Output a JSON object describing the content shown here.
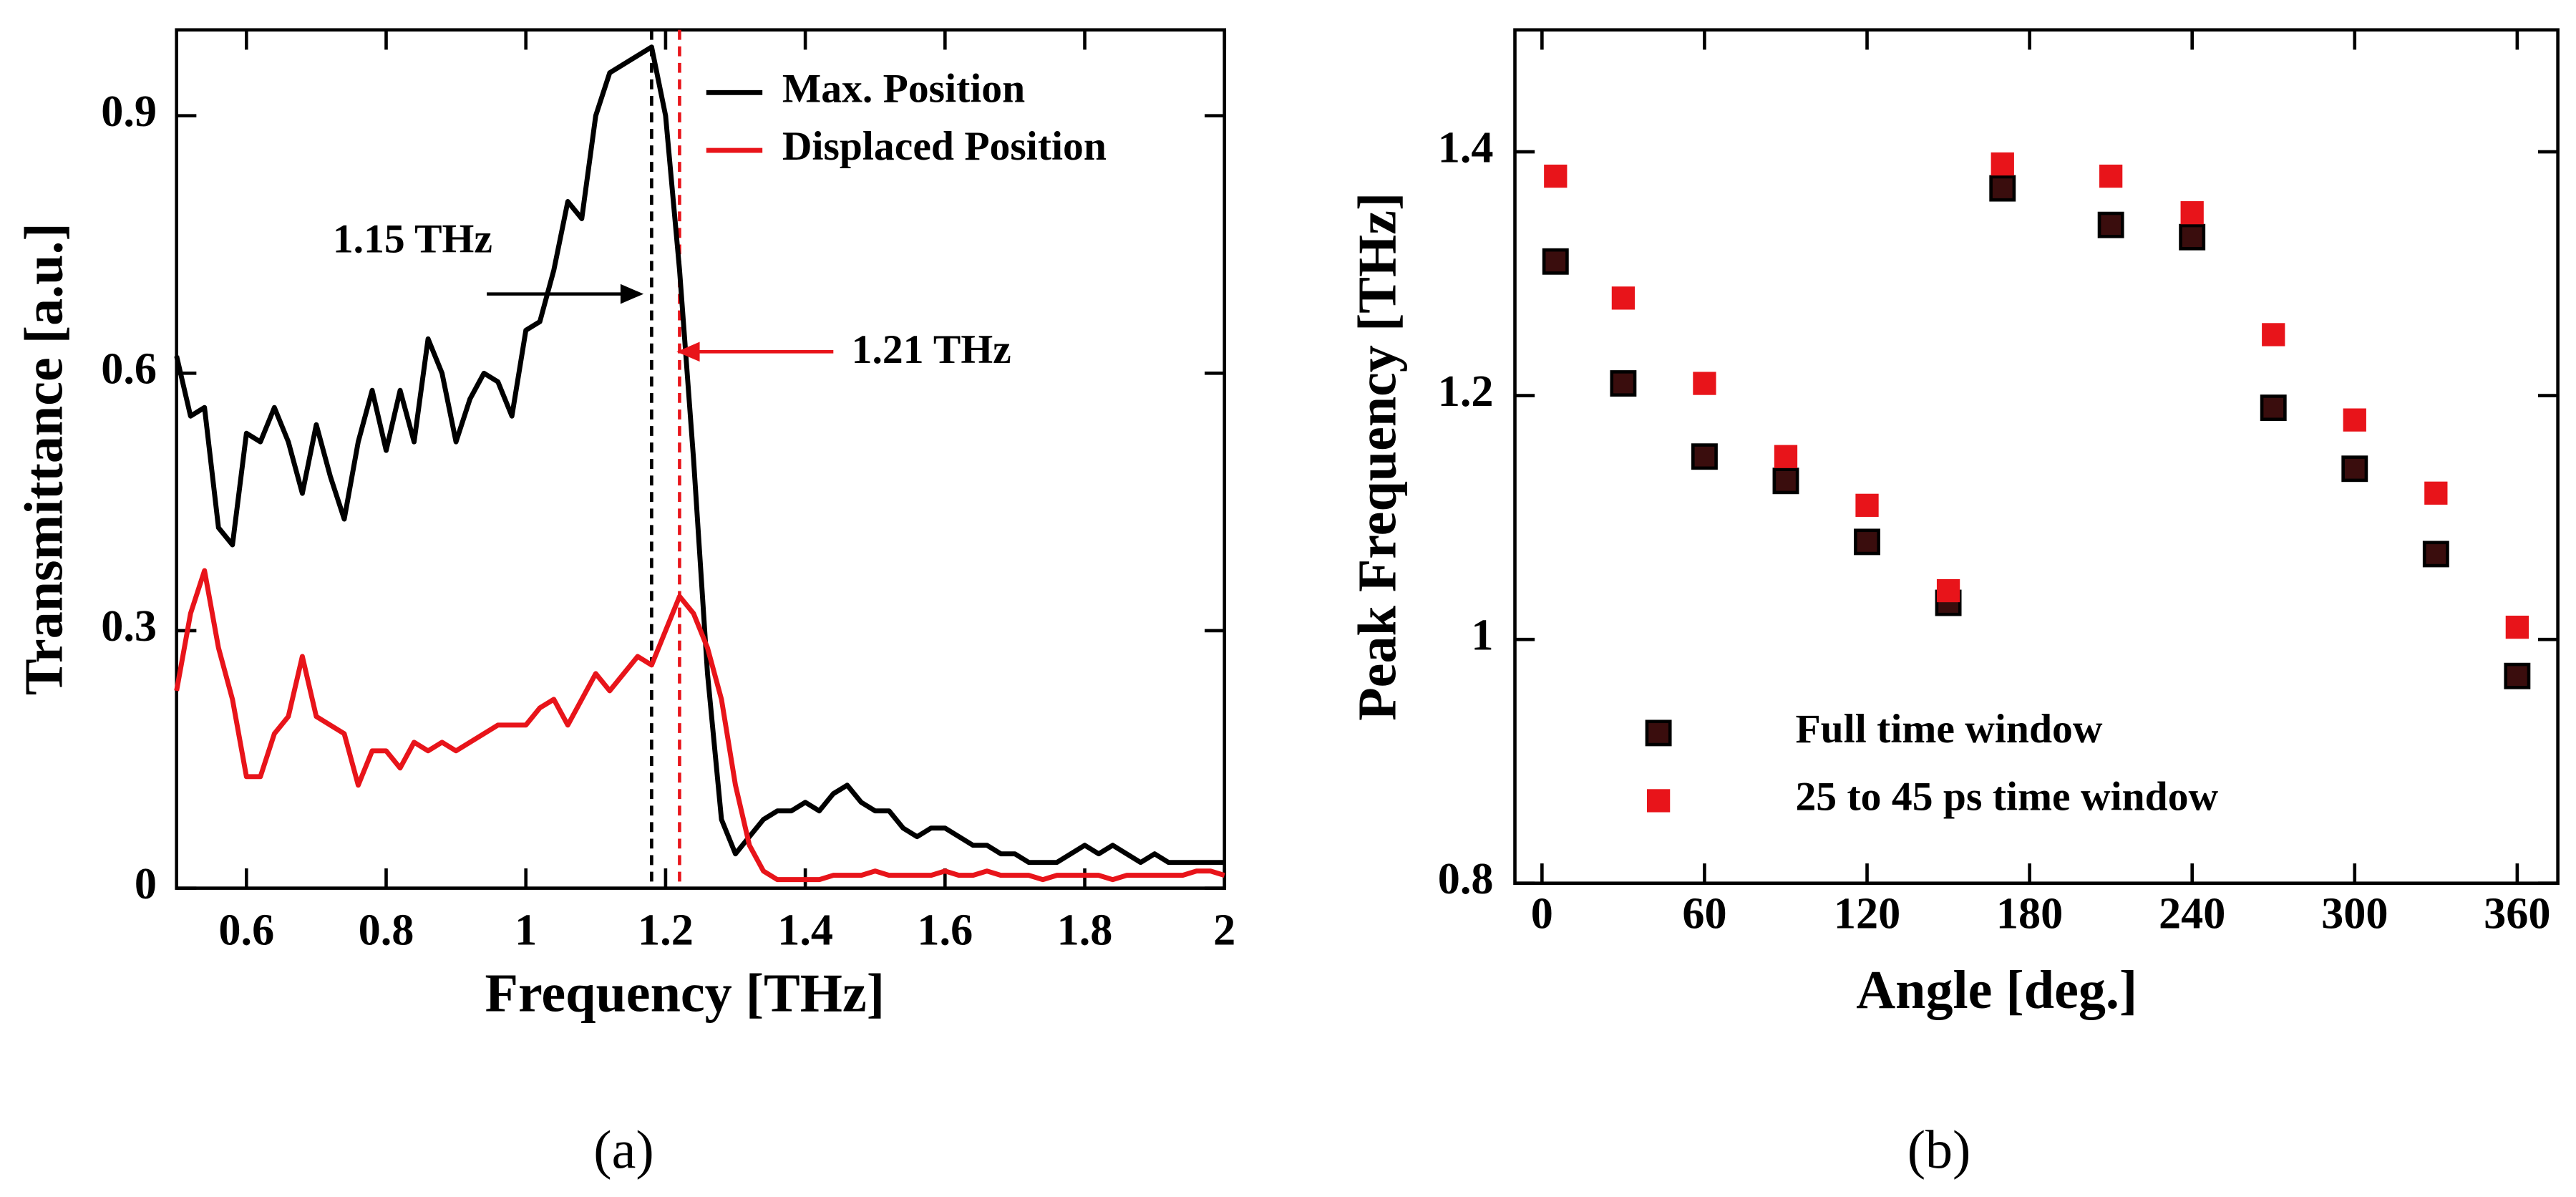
{
  "chart_data": [
    {
      "type": "line",
      "xlabel": "Frequency [THz]",
      "ylabel": "Transmittance [a.u.]",
      "caption": "(a)",
      "x": [
        0.5,
        0.52,
        0.54,
        0.56,
        0.58,
        0.6,
        0.62,
        0.64,
        0.66,
        0.68,
        0.7,
        0.72,
        0.74,
        0.76,
        0.78,
        0.8,
        0.82,
        0.84,
        0.86,
        0.88,
        0.9,
        0.92,
        0.94,
        0.96,
        0.98,
        1.0,
        1.02,
        1.04,
        1.06,
        1.08,
        1.1,
        1.12,
        1.14,
        1.16,
        1.18,
        1.2,
        1.22,
        1.24,
        1.26,
        1.28,
        1.3,
        1.32,
        1.34,
        1.36,
        1.38,
        1.4,
        1.42,
        1.44,
        1.46,
        1.48,
        1.5,
        1.52,
        1.54,
        1.56,
        1.58,
        1.6,
        1.62,
        1.64,
        1.66,
        1.68,
        1.7,
        1.72,
        1.74,
        1.76,
        1.78,
        1.8,
        1.82,
        1.84,
        1.86,
        1.88,
        1.9,
        1.92,
        1.94,
        1.96,
        1.98,
        2.0
      ],
      "series": [
        {
          "name": "Max. Position",
          "color": "#000000",
          "values": [
            0.62,
            0.55,
            0.56,
            0.42,
            0.4,
            0.53,
            0.52,
            0.56,
            0.52,
            0.46,
            0.54,
            0.48,
            0.43,
            0.52,
            0.58,
            0.51,
            0.58,
            0.52,
            0.64,
            0.6,
            0.52,
            0.57,
            0.6,
            0.59,
            0.55,
            0.65,
            0.66,
            0.72,
            0.8,
            0.78,
            0.9,
            0.95,
            0.96,
            0.97,
            0.98,
            0.9,
            0.72,
            0.5,
            0.25,
            0.08,
            0.04,
            0.06,
            0.08,
            0.09,
            0.09,
            0.1,
            0.09,
            0.11,
            0.12,
            0.1,
            0.09,
            0.09,
            0.07,
            0.06,
            0.07,
            0.07,
            0.06,
            0.05,
            0.05,
            0.04,
            0.04,
            0.03,
            0.03,
            0.03,
            0.04,
            0.05,
            0.04,
            0.05,
            0.04,
            0.03,
            0.04,
            0.03,
            0.03,
            0.03,
            0.03,
            0.03
          ]
        },
        {
          "name": "Displaced Position",
          "color": "#e8141a",
          "values": [
            0.23,
            0.32,
            0.37,
            0.28,
            0.22,
            0.13,
            0.13,
            0.18,
            0.2,
            0.27,
            0.2,
            0.19,
            0.18,
            0.12,
            0.16,
            0.16,
            0.14,
            0.17,
            0.16,
            0.17,
            0.16,
            0.17,
            0.18,
            0.19,
            0.19,
            0.19,
            0.21,
            0.22,
            0.19,
            0.22,
            0.25,
            0.23,
            0.25,
            0.27,
            0.26,
            0.3,
            0.34,
            0.32,
            0.28,
            0.22,
            0.12,
            0.05,
            0.02,
            0.01,
            0.01,
            0.01,
            0.01,
            0.015,
            0.015,
            0.015,
            0.02,
            0.015,
            0.015,
            0.015,
            0.015,
            0.02,
            0.015,
            0.015,
            0.02,
            0.015,
            0.015,
            0.015,
            0.01,
            0.015,
            0.015,
            0.015,
            0.015,
            0.01,
            0.015,
            0.015,
            0.015,
            0.015,
            0.015,
            0.02,
            0.02,
            0.015
          ]
        }
      ],
      "reference_lines": [
        {
          "x": 1.18,
          "color": "#000000"
        },
        {
          "x": 1.22,
          "color": "#e8141a"
        }
      ],
      "annotations": [
        {
          "text": "1.15 THz",
          "color": "#000000"
        },
        {
          "text": "1.21 THz",
          "color": "#e8141a"
        }
      ],
      "xlim": [
        0.5,
        2
      ],
      "xticks": [
        0.6,
        0.8,
        1,
        1.2,
        1.4,
        1.6,
        1.8,
        2
      ],
      "ylim": [
        0,
        1
      ],
      "yticks": [
        0,
        0.3,
        0.6,
        0.9
      ],
      "legend": "upper right"
    },
    {
      "type": "scatter",
      "xlabel": "Angle [deg.]",
      "ylabel": "Peak Frequency [THz]",
      "caption": "(b)",
      "x": [
        5,
        30,
        60,
        90,
        120,
        150,
        170,
        210,
        240,
        270,
        300,
        330,
        360
      ],
      "series": [
        {
          "name": "Full time window",
          "color": "#3a0d0d",
          "values": [
            1.31,
            1.21,
            1.15,
            1.13,
            1.08,
            1.03,
            1.37,
            1.34,
            1.33,
            1.19,
            1.14,
            1.07,
            0.97
          ]
        },
        {
          "name": "25 to 45 ps time window",
          "color": "#e8141a",
          "values": [
            1.38,
            1.28,
            1.21,
            1.15,
            1.11,
            1.04,
            1.39,
            1.38,
            1.35,
            1.25,
            1.18,
            1.12,
            1.01
          ]
        }
      ],
      "xlim": [
        -10,
        375
      ],
      "xticks": [
        0,
        60,
        120,
        180,
        240,
        300,
        360
      ],
      "ylim": [
        0.8,
        1.5
      ],
      "yticks": [
        0.8,
        1,
        1.2,
        1.4
      ],
      "legend": "lower left"
    }
  ]
}
